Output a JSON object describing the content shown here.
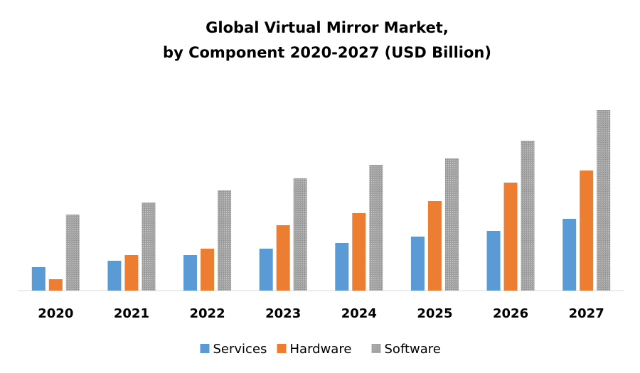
{
  "chart_data": {
    "type": "bar",
    "title": [
      "Global Virtual Mirror Market,",
      "by Component 2020-2027 (USD Billion)"
    ],
    "categories": [
      "2020",
      "2021",
      "2022",
      "2023",
      "2024",
      "2025",
      "2026",
      "2027"
    ],
    "series": [
      {
        "name": "Services",
        "color": "#5b9bd5",
        "values": [
          33,
          42,
          50,
          59,
          67,
          76,
          84,
          101
        ]
      },
      {
        "name": "Hardware",
        "color": "#ed7d31",
        "values": [
          16,
          50,
          59,
          92,
          109,
          126,
          152,
          169
        ]
      },
      {
        "name": "Software",
        "color": "#a5a5a5",
        "values": [
          107,
          124,
          141,
          158,
          177,
          186,
          211,
          254
        ]
      }
    ],
    "ylim": [
      0,
      254
    ]
  }
}
